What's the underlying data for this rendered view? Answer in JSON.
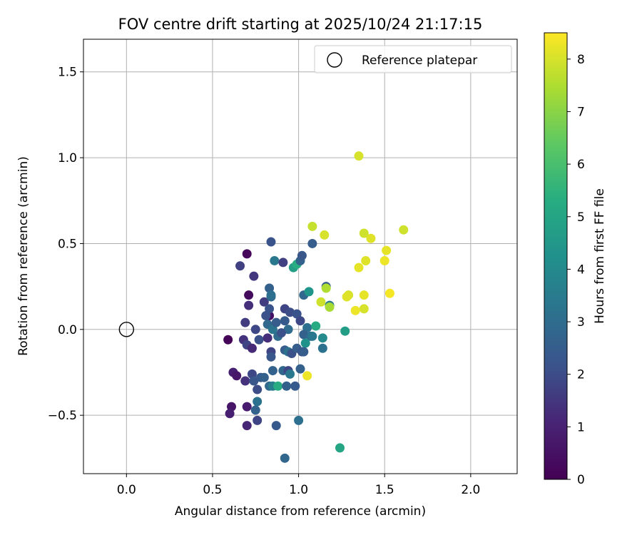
{
  "chart_data": {
    "type": "scatter",
    "title": "FOV centre drift starting at 2025/10/24 21:17:15",
    "xlabel": "Angular distance from reference (arcmin)",
    "ylabel": "Rotation from reference (arcmin)",
    "xlim": [
      -0.25,
      2.27
    ],
    "ylim": [
      -0.84,
      1.69
    ],
    "x_ticks": [
      0.0,
      0.5,
      1.0,
      1.5,
      2.0
    ],
    "x_tick_labels": [
      "0.0",
      "0.5",
      "1.0",
      "1.5",
      "2.0"
    ],
    "y_ticks": [
      -0.5,
      0.0,
      0.5,
      1.0,
      1.5
    ],
    "y_tick_labels": [
      "−0.5",
      "0.0",
      "0.5",
      "1.0",
      "1.5"
    ],
    "grid": true,
    "legend": {
      "position": "top-right",
      "label": "Reference platepar"
    },
    "reference_point": {
      "x": 0.0,
      "y": 0.0,
      "marker": "open-circle"
    },
    "colorbar": {
      "label": "Hours from first FF file",
      "range": [
        0,
        8.5
      ],
      "ticks": [
        0,
        1,
        2,
        3,
        4,
        5,
        6,
        7,
        8
      ],
      "tick_labels": [
        "0",
        "1",
        "2",
        "3",
        "4",
        "5",
        "6",
        "7",
        "8"
      ],
      "colormap": "viridis"
    },
    "points": [
      {
        "x": 0.7,
        "y": 0.44,
        "t": 0.2
      },
      {
        "x": 0.71,
        "y": 0.2,
        "t": 0.3
      },
      {
        "x": 0.59,
        "y": -0.06,
        "t": 0.1
      },
      {
        "x": 0.83,
        "y": 0.08,
        "t": 0.5
      },
      {
        "x": 0.62,
        "y": -0.25,
        "t": 0.9
      },
      {
        "x": 0.64,
        "y": -0.27,
        "t": 0.7
      },
      {
        "x": 0.61,
        "y": -0.45,
        "t": 0.6
      },
      {
        "x": 0.6,
        "y": -0.49,
        "t": 0.9
      },
      {
        "x": 0.7,
        "y": -0.45,
        "t": 0.8
      },
      {
        "x": 0.7,
        "y": -0.56,
        "t": 1.1
      },
      {
        "x": 0.66,
        "y": 0.37,
        "t": 1.7
      },
      {
        "x": 0.74,
        "y": 0.31,
        "t": 1.5
      },
      {
        "x": 0.71,
        "y": 0.14,
        "t": 1.3
      },
      {
        "x": 0.69,
        "y": 0.04,
        "t": 1.6
      },
      {
        "x": 0.68,
        "y": -0.06,
        "t": 1.4
      },
      {
        "x": 0.7,
        "y": -0.09,
        "t": 1.8
      },
      {
        "x": 0.73,
        "y": -0.11,
        "t": 1.2
      },
      {
        "x": 0.75,
        "y": 0.0,
        "t": 1.9
      },
      {
        "x": 0.77,
        "y": -0.06,
        "t": 2.1
      },
      {
        "x": 0.8,
        "y": 0.16,
        "t": 1.6
      },
      {
        "x": 0.81,
        "y": 0.08,
        "t": 2.2
      },
      {
        "x": 0.82,
        "y": -0.05,
        "t": 1.3
      },
      {
        "x": 0.69,
        "y": -0.3,
        "t": 1.4
      },
      {
        "x": 0.73,
        "y": -0.26,
        "t": 1.9
      },
      {
        "x": 0.74,
        "y": -0.3,
        "t": 2.3
      },
      {
        "x": 0.76,
        "y": -0.35,
        "t": 2.0
      },
      {
        "x": 0.78,
        "y": -0.28,
        "t": 2.4
      },
      {
        "x": 0.8,
        "y": -0.28,
        "t": 2.6
      },
      {
        "x": 0.76,
        "y": -0.53,
        "t": 1.8
      },
      {
        "x": 0.75,
        "y": -0.47,
        "t": 2.7
      },
      {
        "x": 0.76,
        "y": -0.42,
        "t": 3.2
      },
      {
        "x": 0.84,
        "y": 0.51,
        "t": 2.2
      },
      {
        "x": 0.86,
        "y": 0.4,
        "t": 3.4
      },
      {
        "x": 0.83,
        "y": 0.24,
        "t": 2.6
      },
      {
        "x": 0.84,
        "y": 0.19,
        "t": 2.9
      },
      {
        "x": 0.84,
        "y": 0.2,
        "t": 3.1
      },
      {
        "x": 0.83,
        "y": 0.12,
        "t": 2.2
      },
      {
        "x": 0.82,
        "y": 0.03,
        "t": 2.9
      },
      {
        "x": 0.85,
        "y": 0.0,
        "t": 3.3
      },
      {
        "x": 0.87,
        "y": 0.04,
        "t": 2.5
      },
      {
        "x": 0.88,
        "y": -0.04,
        "t": 3.0
      },
      {
        "x": 0.84,
        "y": -0.13,
        "t": 1.8
      },
      {
        "x": 0.84,
        "y": -0.16,
        "t": 2.3
      },
      {
        "x": 0.85,
        "y": -0.24,
        "t": 2.7
      },
      {
        "x": 0.83,
        "y": -0.33,
        "t": 2.9
      },
      {
        "x": 0.85,
        "y": -0.33,
        "t": 3.6
      },
      {
        "x": 0.88,
        "y": -0.33,
        "t": 5.3
      },
      {
        "x": 0.87,
        "y": -0.56,
        "t": 2.4
      },
      {
        "x": 0.91,
        "y": 0.39,
        "t": 1.7
      },
      {
        "x": 0.92,
        "y": 0.12,
        "t": 1.8
      },
      {
        "x": 0.95,
        "y": 0.1,
        "t": 2.0
      },
      {
        "x": 0.92,
        "y": 0.05,
        "t": 2.4
      },
      {
        "x": 0.94,
        "y": 0.0,
        "t": 3.0
      },
      {
        "x": 0.9,
        "y": -0.02,
        "t": 2.1
      },
      {
        "x": 0.92,
        "y": -0.12,
        "t": 2.5
      },
      {
        "x": 0.94,
        "y": -0.13,
        "t": 3.2
      },
      {
        "x": 0.96,
        "y": -0.14,
        "t": 2.1
      },
      {
        "x": 0.91,
        "y": -0.24,
        "t": 2.8
      },
      {
        "x": 0.94,
        "y": -0.24,
        "t": 1.9
      },
      {
        "x": 0.95,
        "y": -0.26,
        "t": 3.4
      },
      {
        "x": 0.93,
        "y": -0.33,
        "t": 2.6
      },
      {
        "x": 0.98,
        "y": -0.33,
        "t": 2.4
      },
      {
        "x": 0.92,
        "y": -0.75,
        "t": 2.8
      },
      {
        "x": 1.0,
        "y": -0.53,
        "t": 3.1
      },
      {
        "x": 0.97,
        "y": 0.36,
        "t": 4.8
      },
      {
        "x": 0.99,
        "y": 0.38,
        "t": 5.3
      },
      {
        "x": 1.01,
        "y": 0.4,
        "t": 2.7
      },
      {
        "x": 1.02,
        "y": 0.43,
        "t": 2.3
      },
      {
        "x": 1.08,
        "y": 0.5,
        "t": 2.5
      },
      {
        "x": 1.03,
        "y": 0.2,
        "t": 2.8
      },
      {
        "x": 1.06,
        "y": 0.22,
        "t": 4.4
      },
      {
        "x": 0.99,
        "y": 0.09,
        "t": 2.2
      },
      {
        "x": 1.01,
        "y": 0.05,
        "t": 1.9
      },
      {
        "x": 1.05,
        "y": 0.01,
        "t": 3.1
      },
      {
        "x": 1.03,
        "y": -0.03,
        "t": 2.6
      },
      {
        "x": 1.07,
        "y": -0.04,
        "t": 2.9
      },
      {
        "x": 1.1,
        "y": 0.02,
        "t": 5.2
      },
      {
        "x": 1.08,
        "y": -0.04,
        "t": 3.4
      },
      {
        "x": 0.99,
        "y": -0.11,
        "t": 2.5
      },
      {
        "x": 1.02,
        "y": -0.13,
        "t": 2.2
      },
      {
        "x": 1.04,
        "y": -0.08,
        "t": 4.3
      },
      {
        "x": 1.03,
        "y": -0.13,
        "t": 2.5
      },
      {
        "x": 1.01,
        "y": -0.23,
        "t": 2.6
      },
      {
        "x": 1.05,
        "y": -0.27,
        "t": 8.3
      },
      {
        "x": 1.08,
        "y": 0.6,
        "t": 7.8
      },
      {
        "x": 1.15,
        "y": 0.55,
        "t": 8.0
      },
      {
        "x": 1.16,
        "y": 0.25,
        "t": 2.5
      },
      {
        "x": 1.16,
        "y": 0.24,
        "t": 7.5
      },
      {
        "x": 1.13,
        "y": 0.16,
        "t": 7.9
      },
      {
        "x": 1.18,
        "y": 0.14,
        "t": 3.5
      },
      {
        "x": 1.18,
        "y": 0.13,
        "t": 7.4
      },
      {
        "x": 1.14,
        "y": -0.05,
        "t": 4.0
      },
      {
        "x": 1.14,
        "y": -0.11,
        "t": 3.2
      },
      {
        "x": 1.27,
        "y": -0.01,
        "t": 4.7
      },
      {
        "x": 1.24,
        "y": -0.69,
        "t": 5.0
      },
      {
        "x": 1.35,
        "y": 1.01,
        "t": 8.0
      },
      {
        "x": 1.38,
        "y": 0.56,
        "t": 7.9
      },
      {
        "x": 1.42,
        "y": 0.53,
        "t": 8.1
      },
      {
        "x": 1.39,
        "y": 0.4,
        "t": 8.1
      },
      {
        "x": 1.35,
        "y": 0.36,
        "t": 8.2
      },
      {
        "x": 1.51,
        "y": 0.46,
        "t": 8.2
      },
      {
        "x": 1.5,
        "y": 0.4,
        "t": 8.3
      },
      {
        "x": 1.61,
        "y": 0.58,
        "t": 7.9
      },
      {
        "x": 1.29,
        "y": 0.2,
        "t": 8.0
      },
      {
        "x": 1.28,
        "y": 0.19,
        "t": 8.1
      },
      {
        "x": 1.38,
        "y": 0.2,
        "t": 8.2
      },
      {
        "x": 1.38,
        "y": 0.12,
        "t": 8.0
      },
      {
        "x": 1.33,
        "y": 0.11,
        "t": 8.3
      },
      {
        "x": 1.53,
        "y": 0.21,
        "t": 8.4
      }
    ]
  }
}
